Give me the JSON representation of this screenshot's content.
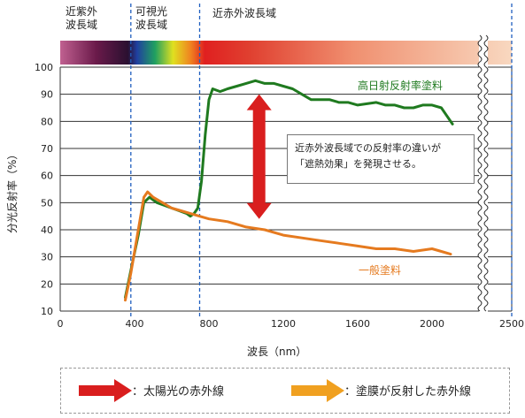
{
  "regions": [
    {
      "label": "近紫外\n波長域"
    },
    {
      "label": "可視光\n波長域"
    },
    {
      "label": "近赤外波長域"
    }
  ],
  "chart_data": {
    "type": "line",
    "xlabel": "波長（nm）",
    "ylabel": "分光反射率（%）",
    "xlim": [
      0,
      2500
    ],
    "ylim": [
      10,
      100
    ],
    "x_ticks": [
      "0",
      "400",
      "800",
      "1200",
      "1600",
      "2000",
      "2500"
    ],
    "y_ticks": [
      "10",
      "20",
      "30",
      "40",
      "50",
      "60",
      "70",
      "80",
      "90",
      "100"
    ],
    "region_boundaries": [
      380,
      750
    ],
    "axis_break_near": 2250,
    "series": [
      {
        "name": "高日射反射率塗料",
        "color": "#1f7a1f",
        "points": [
          [
            350,
            15
          ],
          [
            380,
            25
          ],
          [
            420,
            38
          ],
          [
            450,
            50
          ],
          [
            480,
            52
          ],
          [
            520,
            50
          ],
          [
            560,
            49
          ],
          [
            600,
            48
          ],
          [
            640,
            47
          ],
          [
            680,
            46
          ],
          [
            700,
            45
          ],
          [
            720,
            46
          ],
          [
            740,
            48
          ],
          [
            760,
            58
          ],
          [
            780,
            75
          ],
          [
            800,
            88
          ],
          [
            820,
            92
          ],
          [
            860,
            91
          ],
          [
            900,
            92
          ],
          [
            950,
            93
          ],
          [
            1000,
            94
          ],
          [
            1050,
            95
          ],
          [
            1100,
            94
          ],
          [
            1150,
            94
          ],
          [
            1200,
            93
          ],
          [
            1250,
            92
          ],
          [
            1300,
            90
          ],
          [
            1350,
            88
          ],
          [
            1400,
            88
          ],
          [
            1450,
            88
          ],
          [
            1500,
            87
          ],
          [
            1550,
            87
          ],
          [
            1600,
            86
          ],
          [
            1700,
            87
          ],
          [
            1750,
            86
          ],
          [
            1800,
            86
          ],
          [
            1850,
            85
          ],
          [
            1900,
            85
          ],
          [
            1950,
            86
          ],
          [
            2000,
            86
          ],
          [
            2050,
            85
          ],
          [
            2080,
            82
          ],
          [
            2110,
            79
          ]
        ]
      },
      {
        "name": "一般塗料",
        "color": "#e57a1f",
        "points": [
          [
            350,
            14
          ],
          [
            380,
            24
          ],
          [
            420,
            40
          ],
          [
            450,
            52
          ],
          [
            470,
            54
          ],
          [
            500,
            52
          ],
          [
            550,
            50
          ],
          [
            600,
            48
          ],
          [
            650,
            47
          ],
          [
            700,
            46
          ],
          [
            750,
            45
          ],
          [
            800,
            44
          ],
          [
            900,
            43
          ],
          [
            1000,
            41
          ],
          [
            1100,
            40
          ],
          [
            1200,
            38
          ],
          [
            1300,
            37
          ],
          [
            1400,
            36
          ],
          [
            1500,
            35
          ],
          [
            1600,
            34
          ],
          [
            1700,
            33
          ],
          [
            1800,
            33
          ],
          [
            1900,
            32
          ],
          [
            2000,
            33
          ],
          [
            2050,
            32
          ],
          [
            2100,
            31
          ]
        ]
      }
    ],
    "annotation": {
      "text_line1": "近赤外波長域での反射率の違いが",
      "text_line2": "「遮熱効果」を発現させる。",
      "arrow_from": 90,
      "arrow_to": 44,
      "arrow_x": 1070
    }
  },
  "legend": {
    "red_label": "：太陽光の赤外線",
    "orange_label": "：塗膜が反射した赤外線",
    "red_color": "#d91e1e",
    "orange_color": "#f0a020"
  }
}
